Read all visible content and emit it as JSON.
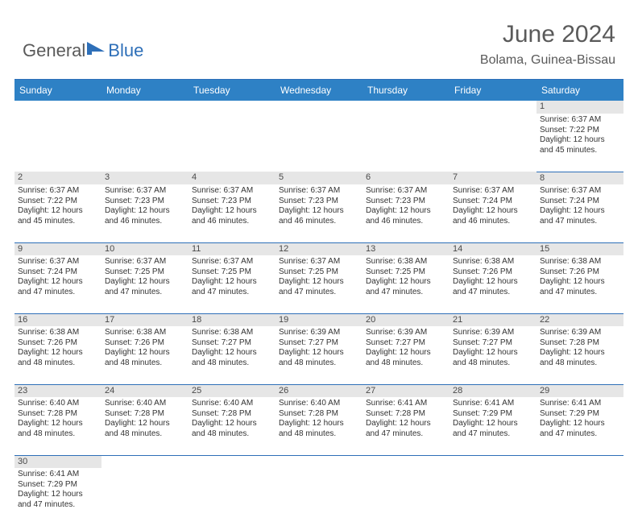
{
  "brand": {
    "part1": "General",
    "part2": "Blue"
  },
  "title": "June 2024",
  "location": "Bolama, Guinea-Bissau",
  "colors": {
    "header_bg": "#2e81c5",
    "header_text": "#ffffff",
    "rule": "#2e6fb8",
    "daynum_bg": "#e6e6e6",
    "text": "#333333",
    "brand_gray": "#5a5a5a",
    "brand_blue": "#2e6fb8"
  },
  "weekdays": [
    "Sunday",
    "Monday",
    "Tuesday",
    "Wednesday",
    "Thursday",
    "Friday",
    "Saturday"
  ],
  "weeks": [
    [
      null,
      null,
      null,
      null,
      null,
      null,
      {
        "n": "1",
        "sr": "6:37 AM",
        "ss": "7:22 PM",
        "dl": "12 hours and 45 minutes."
      }
    ],
    [
      {
        "n": "2",
        "sr": "6:37 AM",
        "ss": "7:22 PM",
        "dl": "12 hours and 45 minutes."
      },
      {
        "n": "3",
        "sr": "6:37 AM",
        "ss": "7:23 PM",
        "dl": "12 hours and 46 minutes."
      },
      {
        "n": "4",
        "sr": "6:37 AM",
        "ss": "7:23 PM",
        "dl": "12 hours and 46 minutes."
      },
      {
        "n": "5",
        "sr": "6:37 AM",
        "ss": "7:23 PM",
        "dl": "12 hours and 46 minutes."
      },
      {
        "n": "6",
        "sr": "6:37 AM",
        "ss": "7:23 PM",
        "dl": "12 hours and 46 minutes."
      },
      {
        "n": "7",
        "sr": "6:37 AM",
        "ss": "7:24 PM",
        "dl": "12 hours and 46 minutes."
      },
      {
        "n": "8",
        "sr": "6:37 AM",
        "ss": "7:24 PM",
        "dl": "12 hours and 47 minutes."
      }
    ],
    [
      {
        "n": "9",
        "sr": "6:37 AM",
        "ss": "7:24 PM",
        "dl": "12 hours and 47 minutes."
      },
      {
        "n": "10",
        "sr": "6:37 AM",
        "ss": "7:25 PM",
        "dl": "12 hours and 47 minutes."
      },
      {
        "n": "11",
        "sr": "6:37 AM",
        "ss": "7:25 PM",
        "dl": "12 hours and 47 minutes."
      },
      {
        "n": "12",
        "sr": "6:37 AM",
        "ss": "7:25 PM",
        "dl": "12 hours and 47 minutes."
      },
      {
        "n": "13",
        "sr": "6:38 AM",
        "ss": "7:25 PM",
        "dl": "12 hours and 47 minutes."
      },
      {
        "n": "14",
        "sr": "6:38 AM",
        "ss": "7:26 PM",
        "dl": "12 hours and 47 minutes."
      },
      {
        "n": "15",
        "sr": "6:38 AM",
        "ss": "7:26 PM",
        "dl": "12 hours and 47 minutes."
      }
    ],
    [
      {
        "n": "16",
        "sr": "6:38 AM",
        "ss": "7:26 PM",
        "dl": "12 hours and 48 minutes."
      },
      {
        "n": "17",
        "sr": "6:38 AM",
        "ss": "7:26 PM",
        "dl": "12 hours and 48 minutes."
      },
      {
        "n": "18",
        "sr": "6:38 AM",
        "ss": "7:27 PM",
        "dl": "12 hours and 48 minutes."
      },
      {
        "n": "19",
        "sr": "6:39 AM",
        "ss": "7:27 PM",
        "dl": "12 hours and 48 minutes."
      },
      {
        "n": "20",
        "sr": "6:39 AM",
        "ss": "7:27 PM",
        "dl": "12 hours and 48 minutes."
      },
      {
        "n": "21",
        "sr": "6:39 AM",
        "ss": "7:27 PM",
        "dl": "12 hours and 48 minutes."
      },
      {
        "n": "22",
        "sr": "6:39 AM",
        "ss": "7:28 PM",
        "dl": "12 hours and 48 minutes."
      }
    ],
    [
      {
        "n": "23",
        "sr": "6:40 AM",
        "ss": "7:28 PM",
        "dl": "12 hours and 48 minutes."
      },
      {
        "n": "24",
        "sr": "6:40 AM",
        "ss": "7:28 PM",
        "dl": "12 hours and 48 minutes."
      },
      {
        "n": "25",
        "sr": "6:40 AM",
        "ss": "7:28 PM",
        "dl": "12 hours and 48 minutes."
      },
      {
        "n": "26",
        "sr": "6:40 AM",
        "ss": "7:28 PM",
        "dl": "12 hours and 48 minutes."
      },
      {
        "n": "27",
        "sr": "6:41 AM",
        "ss": "7:28 PM",
        "dl": "12 hours and 47 minutes."
      },
      {
        "n": "28",
        "sr": "6:41 AM",
        "ss": "7:29 PM",
        "dl": "12 hours and 47 minutes."
      },
      {
        "n": "29",
        "sr": "6:41 AM",
        "ss": "7:29 PM",
        "dl": "12 hours and 47 minutes."
      }
    ],
    [
      {
        "n": "30",
        "sr": "6:41 AM",
        "ss": "7:29 PM",
        "dl": "12 hours and 47 minutes."
      },
      null,
      null,
      null,
      null,
      null,
      null
    ]
  ],
  "labels": {
    "sunrise": "Sunrise:",
    "sunset": "Sunset:",
    "daylight": "Daylight:"
  }
}
